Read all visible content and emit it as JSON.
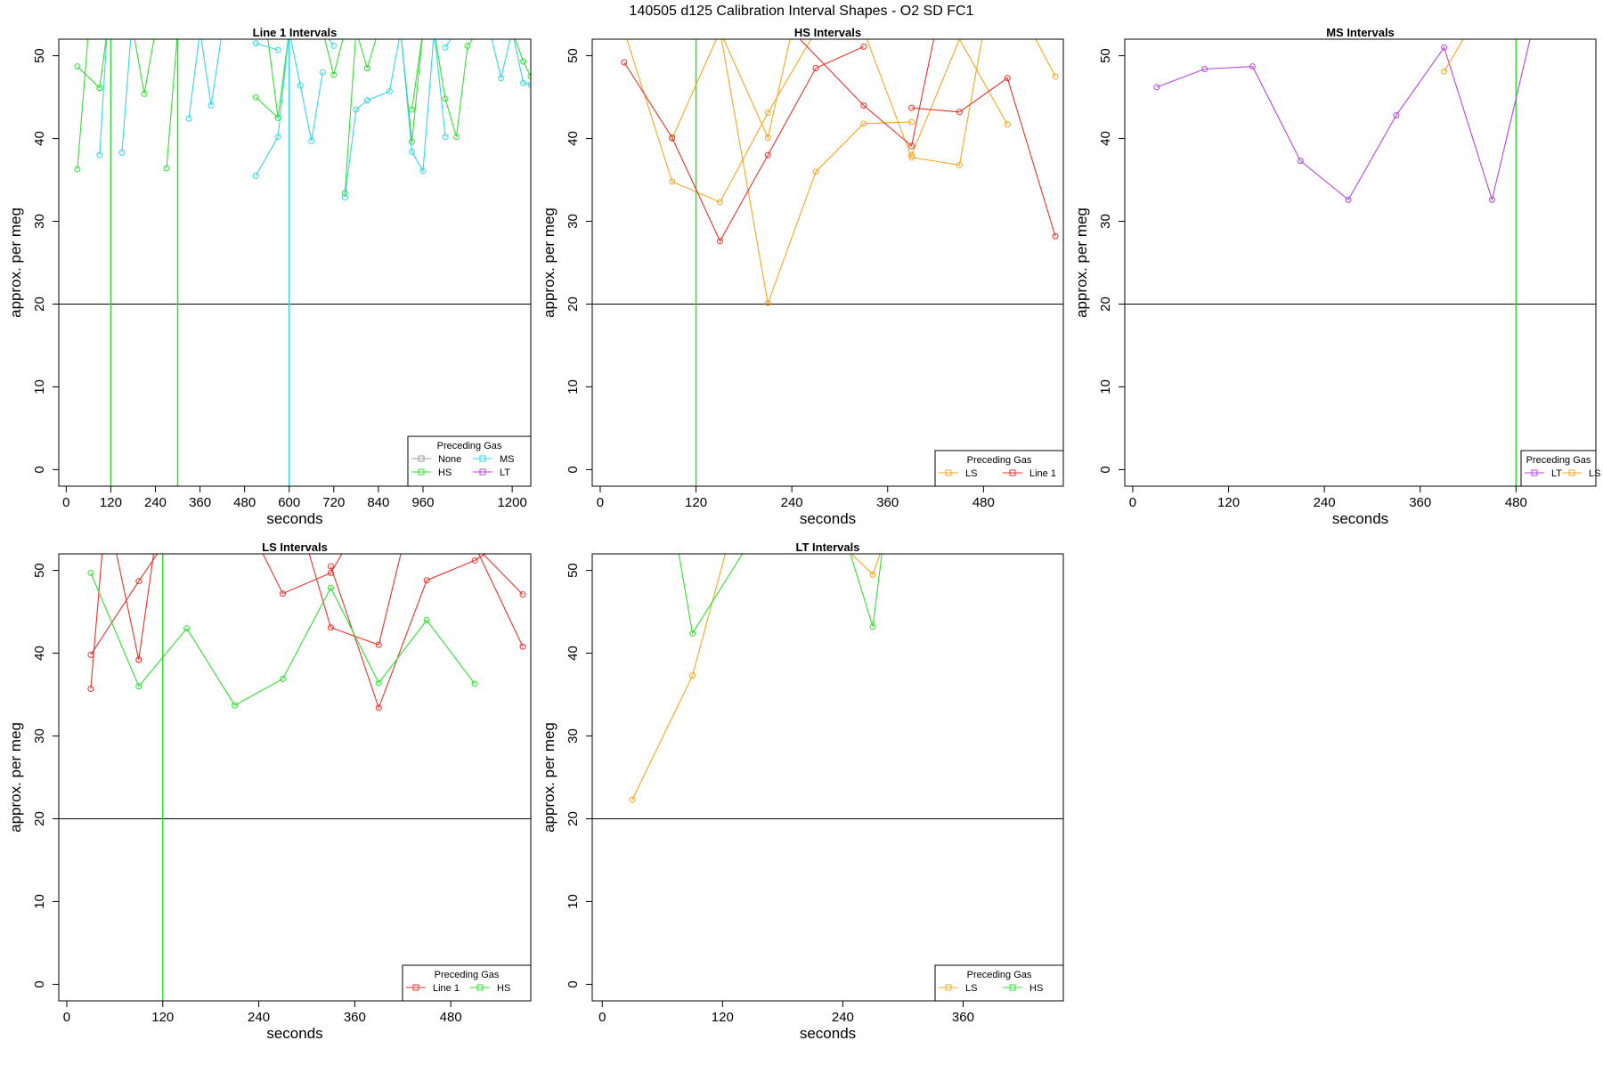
{
  "page_title": "140505   d125   Calibration Interval Shapes - O2 SD FC1",
  "legend_title": "Preceding Gas",
  "colors": {
    "None": "#9a9a9a",
    "HS": "#33dd33",
    "MS": "#33d6e6",
    "LT": "#b347e0",
    "LS": "#f5a623",
    "Line 1": "#e8312b",
    "ref": "#000000"
  },
  "chart_data": [
    {
      "type": "line",
      "title": "Line 1 Intervals",
      "xlabel": "seconds",
      "ylabel": "approx. per meg",
      "xlim": [
        -20,
        1250
      ],
      "ylim": [
        -2,
        52
      ],
      "xticks": [
        0,
        120,
        240,
        360,
        480,
        600,
        720,
        840,
        960,
        1200
      ],
      "yticks": [
        0,
        10,
        20,
        30,
        40,
        50
      ],
      "hline": 20,
      "vlines": [
        {
          "x": 120,
          "gas": "HS"
        },
        {
          "x": 300,
          "gas": "HS"
        },
        {
          "x": 600,
          "gas": "MS"
        }
      ],
      "legend": {
        "entries": [
          "None",
          "MS",
          "HS",
          "LT"
        ],
        "columns": 2,
        "position": "bottom-right"
      },
      "series": [
        {
          "name": "HS",
          "lines": [
            {
              "x": [
                30,
                90
              ],
              "y": [
                48.7,
                46.1
              ]
            },
            {
              "x": [
                30,
                60
              ],
              "y": [
                36.3,
                53
              ]
            },
            {
              "x": [
                90,
                110
              ],
              "y": [
                46.1,
                53
              ]
            },
            {
              "x": [
                180,
                210,
                240
              ],
              "y": [
                53,
                45.4,
                53
              ]
            },
            {
              "x": [
                270,
                300
              ],
              "y": [
                36.4,
                53
              ]
            },
            {
              "x": [
                510,
                570,
                600
              ],
              "y": [
                45.0,
                42.5,
                53
              ]
            },
            {
              "x": [
                540,
                570
              ],
              "y": [
                53,
                42.5
              ]
            },
            {
              "x": [
                690,
                720,
                750,
                780
              ],
              "y": [
                53,
                47.7,
                53,
                53
              ]
            },
            {
              "x": [
                750,
                780,
                810
              ],
              "y": [
                33.4,
                53,
                48.5
              ]
            },
            {
              "x": [
                810,
                840
              ],
              "y": [
                48.5,
                53
              ]
            },
            {
              "x": [
                900,
                930,
                960
              ],
              "y": [
                53,
                39.6,
                53
              ]
            },
            {
              "x": [
                930,
                960
              ],
              "y": [
                43.5,
                53
              ]
            },
            {
              "x": [
                990,
                1020,
                1050,
                1080,
                1110
              ],
              "y": [
                53,
                44.8,
                40.2,
                51.2,
                53
              ]
            },
            {
              "x": [
                1140,
                1170,
                1200,
                1230,
                1250
              ],
              "y": [
                53,
                53,
                53,
                49.3,
                47.5
              ]
            }
          ]
        },
        {
          "name": "MS",
          "lines": [
            {
              "x": [
                90,
                110
              ],
              "y": [
                38.0,
                53
              ]
            },
            {
              "x": [
                150,
                175
              ],
              "y": [
                38.3,
                53
              ]
            },
            {
              "x": [
                330,
                360,
                390,
                420
              ],
              "y": [
                42.4,
                53,
                44.0,
                53
              ]
            },
            {
              "x": [
                510,
                570,
                600
              ],
              "y": [
                35.5,
                40.2,
                53
              ]
            },
            {
              "x": [
                510,
                570
              ],
              "y": [
                51.5,
                50.7
              ]
            },
            {
              "x": [
                600,
                630,
                660,
                690
              ],
              "y": [
                53,
                46.4,
                39.7,
                48
              ]
            },
            {
              "x": [
                690,
                720
              ],
              "y": [
                53,
                51.2
              ]
            },
            {
              "x": [
                750,
                780,
                810
              ],
              "y": [
                32.9,
                43.5,
                44.6
              ]
            },
            {
              "x": [
                810,
                870,
                900
              ],
              "y": [
                44.6,
                45.7,
                53
              ]
            },
            {
              "x": [
                900,
                930,
                960,
                990,
                1020
              ],
              "y": [
                53,
                38.4,
                36.1,
                53,
                40.2
              ]
            },
            {
              "x": [
                1020,
                1050,
                1080
              ],
              "y": [
                51.0,
                53,
                53
              ]
            },
            {
              "x": [
                1140,
                1170,
                1200
              ],
              "y": [
                53,
                47.3,
                53
              ]
            },
            {
              "x": [
                1200,
                1230,
                1250
              ],
              "y": [
                53,
                46.7,
                46.5
              ]
            }
          ]
        }
      ]
    },
    {
      "type": "line",
      "title": "HS Intervals",
      "xlabel": "seconds",
      "ylabel": "approx. per meg",
      "xlim": [
        -10,
        580
      ],
      "ylim": [
        -2,
        52
      ],
      "xticks": [
        0,
        120,
        240,
        360,
        480
      ],
      "yticks": [
        0,
        10,
        20,
        30,
        40,
        50
      ],
      "hline": 20,
      "vlines": [
        {
          "x": 120,
          "gas": "HS"
        }
      ],
      "legend": {
        "entries": [
          "LS",
          "Line 1"
        ],
        "columns": 2,
        "position": "bottom-right"
      },
      "series": [
        {
          "name": "LS",
          "lines": [
            {
              "x": [
                30,
                90,
                150,
                210,
                270
              ],
              "y": [
                53,
                34.8,
                32.3,
                43.1,
                53
              ]
            },
            {
              "x": [
                90,
                150,
                210
              ],
              "y": [
                40.0,
                53,
                20.1
              ]
            },
            {
              "x": [
                150,
                210,
                240
              ],
              "y": [
                53,
                40.1,
                53
              ]
            },
            {
              "x": [
                210,
                270,
                330,
                390
              ],
              "y": [
                20.1,
                36.0,
                41.8,
                42.0
              ]
            },
            {
              "x": [
                330,
                390,
                450,
                480
              ],
              "y": [
                53,
                37.7,
                36.8,
                53
              ]
            },
            {
              "x": [
                390,
                450,
                510
              ],
              "y": [
                38.0,
                52.0,
                41.7
              ]
            },
            {
              "x": [
                540,
                570
              ],
              "y": [
                53,
                47.5
              ]
            }
          ]
        },
        {
          "name": "Line 1",
          "lines": [
            {
              "x": [
                30,
                90,
                150,
                210,
                270,
                330
              ],
              "y": [
                49.2,
                40.1,
                27.6,
                38.0,
                48.5,
                51.1
              ]
            },
            {
              "x": [
                30,
                90
              ],
              "y": [
                52.0,
                52.5
              ]
            },
            {
              "x": [
                240,
                330,
                390,
                420
              ],
              "y": [
                53,
                44.0,
                39.1,
                53
              ]
            },
            {
              "x": [
                390,
                450,
                510,
                570
              ],
              "y": [
                43.7,
                43.2,
                47.3,
                28.2
              ]
            }
          ]
        }
      ]
    },
    {
      "type": "line",
      "title": "MS Intervals",
      "xlabel": "seconds",
      "ylabel": "approx. per meg",
      "xlim": [
        -10,
        580
      ],
      "ylim": [
        -2,
        52
      ],
      "xticks": [
        0,
        120,
        240,
        360,
        480
      ],
      "yticks": [
        0,
        10,
        20,
        30,
        40,
        50
      ],
      "hline": 20,
      "vlines": [
        {
          "x": 480,
          "gas": "HS"
        }
      ],
      "legend": {
        "entries": [
          "LT",
          "LS"
        ],
        "columns": 2,
        "position": "bottom-right"
      },
      "series": [
        {
          "name": "LT",
          "lines": [
            {
              "x": [
                30,
                90,
                150,
                210,
                270,
                330,
                390,
                450,
                500
              ],
              "y": [
                46.2,
                48.4,
                48.7,
                37.3,
                32.6,
                42.8,
                51.0,
                32.6,
                53
              ]
            }
          ]
        },
        {
          "name": "LS",
          "lines": [
            {
              "x": [
                390,
                420
              ],
              "y": [
                48.1,
                53
              ]
            }
          ]
        }
      ]
    },
    {
      "type": "line",
      "title": "LS Intervals",
      "xlabel": "seconds",
      "ylabel": "approx. per meg",
      "xlim": [
        -10,
        580
      ],
      "ylim": [
        -2,
        52
      ],
      "xticks": [
        0,
        120,
        240,
        360,
        480
      ],
      "yticks": [
        0,
        10,
        20,
        30,
        40,
        50
      ],
      "hline": 20,
      "vlines": [
        {
          "x": 120,
          "gas": "HS"
        }
      ],
      "legend": {
        "entries": [
          "Line 1",
          "HS"
        ],
        "columns": 2,
        "position": "bottom-right"
      },
      "series": [
        {
          "name": "Line 1",
          "lines": [
            {
              "x": [
                30,
                90,
                120
              ],
              "y": [
                39.8,
                48.7,
                53
              ]
            },
            {
              "x": [
                30,
                45
              ],
              "y": [
                35.7,
                53
              ]
            },
            {
              "x": [
                60,
                90
              ],
              "y": [
                53,
                39.2
              ]
            },
            {
              "x": [
                90,
                110
              ],
              "y": [
                39.2,
                53
              ]
            },
            {
              "x": [
                240,
                270,
                330,
                350
              ],
              "y": [
                53,
                47.2,
                49.7,
                53
              ]
            },
            {
              "x": [
                300,
                330,
                390,
                420
              ],
              "y": [
                53,
                43.1,
                41.0,
                53
              ]
            },
            {
              "x": [
                330,
                390,
                450,
                510,
                540
              ],
              "y": [
                50.5,
                33.4,
                48.8,
                51.2,
                53
              ]
            },
            {
              "x": [
                510,
                570
              ],
              "y": [
                53,
                47.1
              ]
            },
            {
              "x": [
                510,
                570
              ],
              "y": [
                53,
                40.8
              ]
            }
          ]
        },
        {
          "name": "HS",
          "lines": [
            {
              "x": [
                30,
                90,
                150,
                210,
                270,
                330,
                390,
                450,
                510
              ],
              "y": [
                49.7,
                36.0,
                43.0,
                33.7,
                36.9,
                47.9,
                36.4,
                44.0,
                36.3
              ]
            }
          ]
        }
      ]
    },
    {
      "type": "line",
      "title": "LT Intervals",
      "xlabel": "seconds",
      "ylabel": "approx. per meg",
      "xlim": [
        -10,
        460
      ],
      "ylim": [
        -2,
        52
      ],
      "xticks": [
        0,
        120,
        240,
        360
      ],
      "yticks": [
        0,
        10,
        20,
        30,
        40,
        50
      ],
      "hline": 20,
      "vlines": [],
      "legend": {
        "entries": [
          "LS",
          "HS"
        ],
        "columns": 2,
        "position": "bottom-right"
      },
      "series": [
        {
          "name": "LS",
          "lines": [
            {
              "x": [
                30,
                90,
                125
              ],
              "y": [
                22.3,
                37.3,
                53
              ]
            },
            {
              "x": [
                240,
                270,
                280
              ],
              "y": [
                53,
                49.5,
                53
              ]
            }
          ]
        },
        {
          "name": "HS",
          "lines": [
            {
              "x": [
                75,
                90,
                145
              ],
              "y": [
                53,
                42.4,
                53
              ]
            },
            {
              "x": [
                245,
                270,
                280
              ],
              "y": [
                53,
                43.2,
                53
              ]
            }
          ]
        }
      ]
    }
  ]
}
